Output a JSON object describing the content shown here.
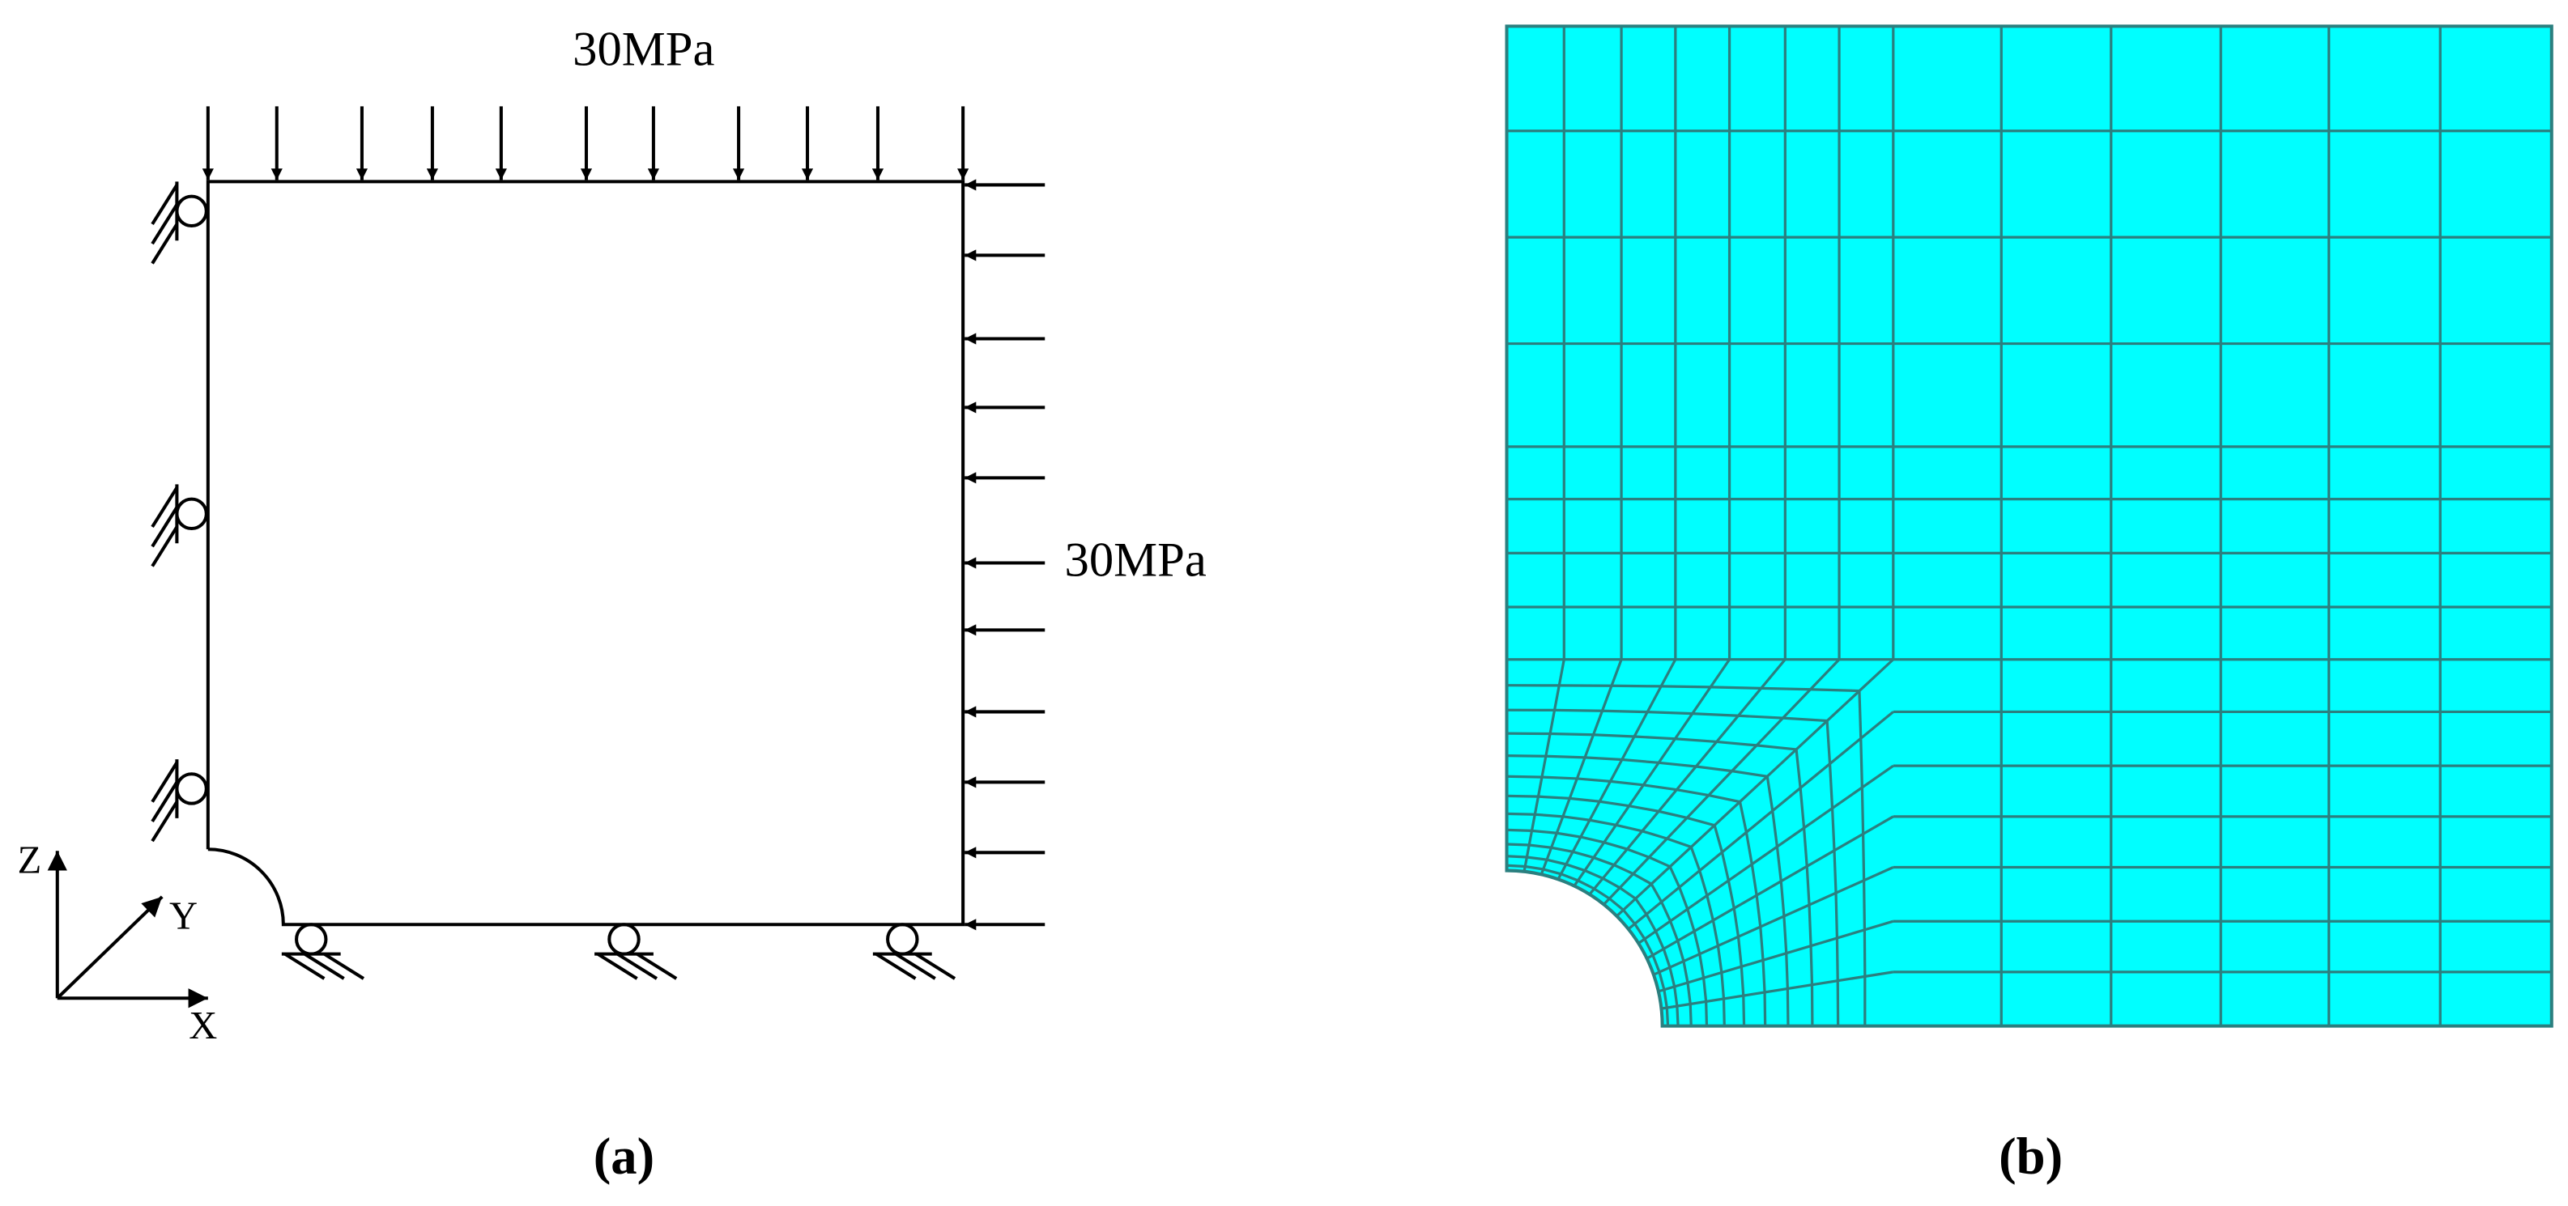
{
  "figure": {
    "panels": [
      {
        "label": "(a)",
        "load_top": "30MPa",
        "load_right": "30MPa",
        "axes": {
          "z": "Z",
          "y": "Y",
          "x": "X"
        }
      },
      {
        "label": "(b)"
      }
    ]
  }
}
